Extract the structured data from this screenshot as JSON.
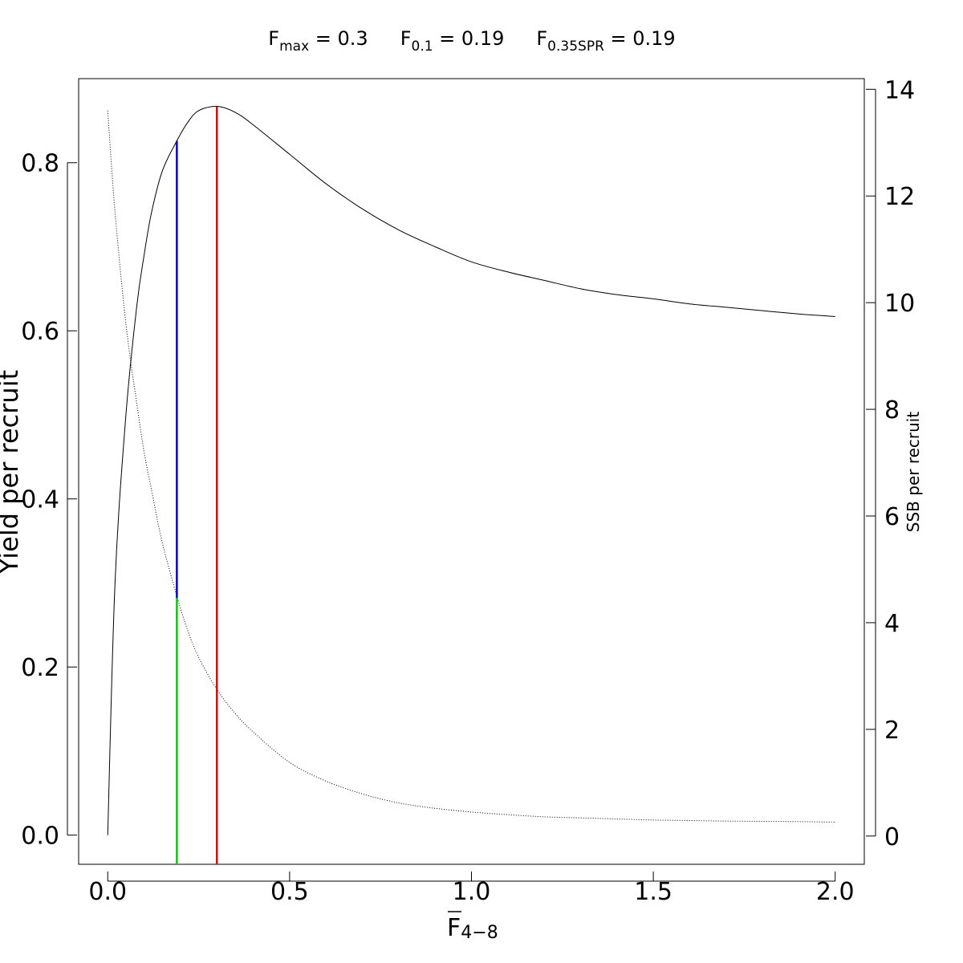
{
  "chart_data": {
    "type": "line",
    "title_parts": [
      {
        "base": "F",
        "sub": "max",
        "rest": " = 0.3"
      },
      {
        "base": "F",
        "sub": "0.1",
        "rest": " = 0.19"
      },
      {
        "base": "F",
        "sub": "0.35SPR",
        "rest": " = 0.19"
      }
    ],
    "xlabel": {
      "base": "F",
      "sub": "4−8",
      "bar": true
    },
    "ylabel": "Yield per recruit",
    "y2label": "SSB per recruit",
    "xlim": [
      -0.08,
      2.08
    ],
    "ylim": [
      -0.0347,
      0.9
    ],
    "y2lim": [
      -0.53,
      14.2
    ],
    "x_ticks": [
      "0.0",
      "0.5",
      "1.0",
      "1.5",
      "2.0"
    ],
    "y_ticks": [
      "0.0",
      "0.2",
      "0.4",
      "0.6",
      "0.8"
    ],
    "y2_ticks": [
      "0",
      "2",
      "4",
      "6",
      "8",
      "10",
      "12",
      "14"
    ],
    "series": [
      {
        "axis": "left",
        "style": "solid",
        "color": "#000000",
        "x": [
          0,
          0.02,
          0.05,
          0.08,
          0.1,
          0.12,
          0.15,
          0.19,
          0.22,
          0.25,
          0.3,
          0.35,
          0.4,
          0.5,
          0.6,
          0.7,
          0.8,
          0.9,
          1.0,
          1.1,
          1.2,
          1.3,
          1.4,
          1.5,
          1.6,
          1.7,
          1.8,
          1.9,
          2.0
        ],
        "values": [
          0.0,
          0.3,
          0.5,
          0.63,
          0.69,
          0.74,
          0.79,
          0.826,
          0.848,
          0.862,
          0.867,
          0.86,
          0.845,
          0.81,
          0.775,
          0.745,
          0.72,
          0.7,
          0.682,
          0.67,
          0.66,
          0.65,
          0.643,
          0.638,
          0.632,
          0.628,
          0.624,
          0.62,
          0.617
        ]
      },
      {
        "axis": "right",
        "style": "dotted",
        "color": "#000000",
        "x": [
          0,
          0.02,
          0.05,
          0.08,
          0.1,
          0.12,
          0.15,
          0.19,
          0.22,
          0.25,
          0.3,
          0.35,
          0.4,
          0.5,
          0.6,
          0.7,
          0.8,
          0.9,
          1.0,
          1.1,
          1.2,
          1.3,
          1.4,
          1.5,
          1.6,
          1.7,
          1.8,
          1.9,
          2.0
        ],
        "values": [
          13.6,
          11.7,
          9.6,
          8.1,
          7.2,
          6.5,
          5.5,
          4.5,
          3.85,
          3.35,
          2.75,
          2.3,
          1.95,
          1.38,
          1.03,
          0.79,
          0.62,
          0.52,
          0.45,
          0.4,
          0.36,
          0.34,
          0.32,
          0.3,
          0.29,
          0.28,
          0.275,
          0.27,
          0.26
        ]
      }
    ],
    "reference_lines": [
      {
        "name": "F0.1",
        "x": 0.19,
        "y_from": 0.282,
        "y_to": 0.826,
        "color": "#0000CD"
      },
      {
        "name": "F0.35SPR",
        "x": 0.19,
        "y_from": -0.0347,
        "y_to": 0.282,
        "color": "#00CD00"
      },
      {
        "name": "Fmax",
        "x": 0.3,
        "y_from": -0.0347,
        "y_to": 0.867,
        "color": "#DD0000"
      }
    ]
  }
}
